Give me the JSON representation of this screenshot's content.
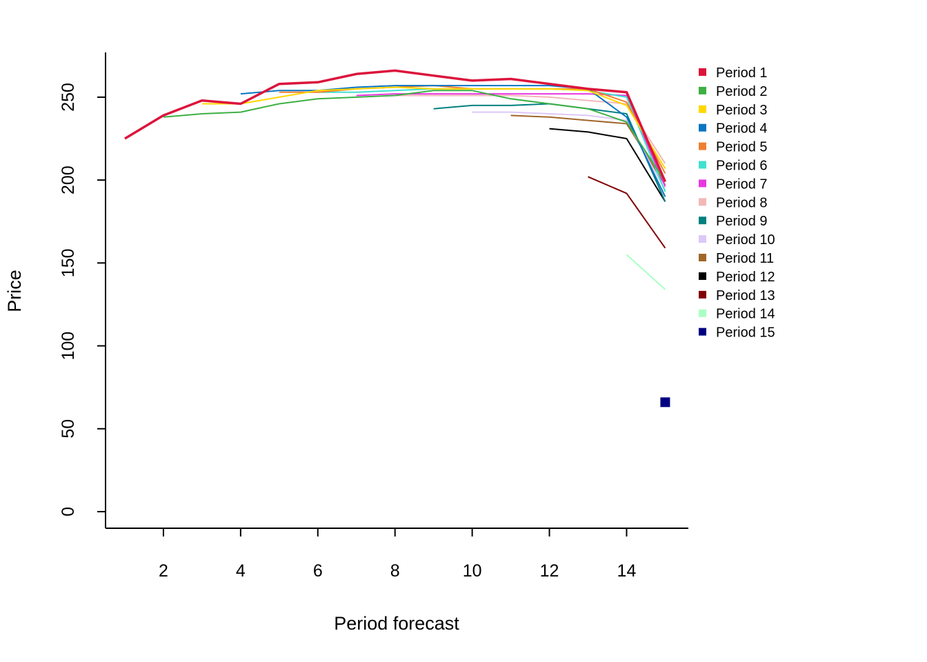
{
  "chart_data": {
    "type": "line",
    "title": "",
    "xlabel": "Period forecast",
    "ylabel": "Price",
    "xlim": [
      0.5,
      15.6
    ],
    "ylim": [
      -10,
      277
    ],
    "x_ticks": [
      2,
      4,
      6,
      8,
      10,
      12,
      14
    ],
    "y_ticks": [
      0,
      50,
      100,
      150,
      200,
      250
    ],
    "grid": false,
    "legend_position": "top-right",
    "series": [
      {
        "name": "Period 1",
        "color": "#DC143C",
        "x": [
          1,
          2,
          3,
          4,
          5,
          6,
          7,
          8,
          9,
          10,
          11,
          12,
          13,
          14,
          15
        ],
        "y": [
          225,
          239,
          248,
          246,
          258,
          259,
          264,
          266,
          263,
          260,
          261,
          258,
          255,
          253,
          199
        ]
      },
      {
        "name": "Period 2",
        "color": "#3CB043",
        "x": [
          2,
          3,
          4,
          5,
          6,
          7,
          8,
          9,
          10,
          11,
          12,
          13,
          14,
          15
        ],
        "y": [
          238,
          240,
          241,
          246,
          249,
          250,
          251,
          254,
          254,
          249,
          246,
          243,
          235,
          199
        ]
      },
      {
        "name": "Period 3",
        "color": "#FFD700",
        "x": [
          3,
          4,
          5,
          6,
          7,
          8,
          9,
          10,
          11,
          12,
          13,
          14,
          15
        ],
        "y": [
          246,
          246,
          250,
          254,
          255,
          256,
          255,
          255,
          255,
          255,
          254,
          245,
          207
        ]
      },
      {
        "name": "Period 4",
        "color": "#0A75C2",
        "x": [
          4,
          5,
          6,
          7,
          8,
          9,
          10,
          11,
          12,
          13,
          14,
          15
        ],
        "y": [
          252,
          254,
          254,
          256,
          257,
          257,
          257,
          257,
          257,
          255,
          238,
          190
        ]
      },
      {
        "name": "Period 5",
        "color": "#F08030",
        "x": [
          5,
          6,
          7,
          8,
          9,
          10,
          11,
          12,
          13,
          14,
          15
        ],
        "y": [
          253,
          253,
          255,
          256,
          257,
          255,
          255,
          255,
          255,
          247,
          204
        ]
      },
      {
        "name": "Period 6",
        "color": "#40E0D0",
        "x": [
          6,
          7,
          8,
          9,
          10,
          11,
          12,
          13,
          14,
          15
        ],
        "y": [
          253,
          253,
          254,
          255,
          255,
          255,
          255,
          254,
          250,
          193
        ]
      },
      {
        "name": "Period 7",
        "color": "#E838E0",
        "x": [
          7,
          8,
          9,
          10,
          11,
          12,
          13,
          14,
          15
        ],
        "y": [
          251,
          252,
          252,
          252,
          252,
          252,
          252,
          251,
          196
        ]
      },
      {
        "name": "Period 8",
        "color": "#F2B8B8",
        "x": [
          8,
          9,
          10,
          11,
          12,
          13,
          14,
          15
        ],
        "y": [
          251,
          251,
          251,
          251,
          250,
          248,
          246,
          210
        ]
      },
      {
        "name": "Period 9",
        "color": "#008080",
        "x": [
          9,
          10,
          11,
          12,
          13,
          14,
          15
        ],
        "y": [
          243,
          245,
          245,
          246,
          243,
          240,
          187
        ]
      },
      {
        "name": "Period 10",
        "color": "#DCC8F8",
        "x": [
          10,
          11,
          12,
          13,
          14,
          15
        ],
        "y": [
          241,
          241,
          240,
          239,
          236,
          194
        ]
      },
      {
        "name": "Period 11",
        "color": "#A0662A",
        "x": [
          11,
          12,
          13,
          14,
          15
        ],
        "y": [
          239,
          238,
          236,
          234,
          197
        ]
      },
      {
        "name": "Period 12",
        "color": "#000000",
        "x": [
          12,
          13,
          14,
          15
        ],
        "y": [
          231,
          229,
          225,
          187
        ]
      },
      {
        "name": "Period 13",
        "color": "#800000",
        "x": [
          13,
          14,
          15
        ],
        "y": [
          202,
          192,
          159
        ]
      },
      {
        "name": "Period 14",
        "color": "#AAFFC3",
        "x": [
          14,
          15
        ],
        "y": [
          155,
          134
        ]
      },
      {
        "name": "Period 15",
        "color": "#000080",
        "x": [
          15
        ],
        "y": [
          66
        ]
      }
    ]
  }
}
